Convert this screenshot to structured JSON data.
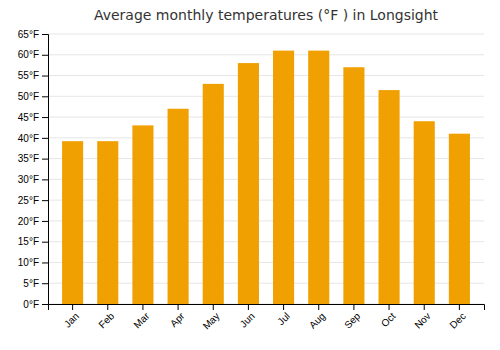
{
  "chart_data": {
    "type": "bar",
    "title": "Average monthly temperatures (°F ) in Longsight",
    "categories": [
      "Jan",
      "Feb",
      "Mar",
      "Apr",
      "May",
      "Jun",
      "Jul",
      "Aug",
      "Sep",
      "Oct",
      "Nov",
      "Dec"
    ],
    "values": [
      39.2,
      39.2,
      43.0,
      47.0,
      53.0,
      58.0,
      61.0,
      61.0,
      57.0,
      51.5,
      44.0,
      41.0
    ],
    "color": "#F0A000",
    "ylim": [
      0,
      65
    ],
    "yticks": [
      {
        "value": 0,
        "label": "0°F"
      },
      {
        "value": 5,
        "label": "5°F"
      },
      {
        "value": 10,
        "label": "10°F"
      },
      {
        "value": 15,
        "label": "15°F"
      },
      {
        "value": 20,
        "label": "20°F"
      },
      {
        "value": 25,
        "label": "25°F"
      },
      {
        "value": 30,
        "label": "30°F"
      },
      {
        "value": 35,
        "label": "35°F"
      },
      {
        "value": 40,
        "label": "40°F"
      },
      {
        "value": 45,
        "label": "45°F"
      },
      {
        "value": 50,
        "label": "50°F"
      },
      {
        "value": 55,
        "label": "55°F"
      },
      {
        "value": 60,
        "label": "60°F"
      },
      {
        "value": 65,
        "label": "65°F"
      }
    ],
    "grid": true
  }
}
